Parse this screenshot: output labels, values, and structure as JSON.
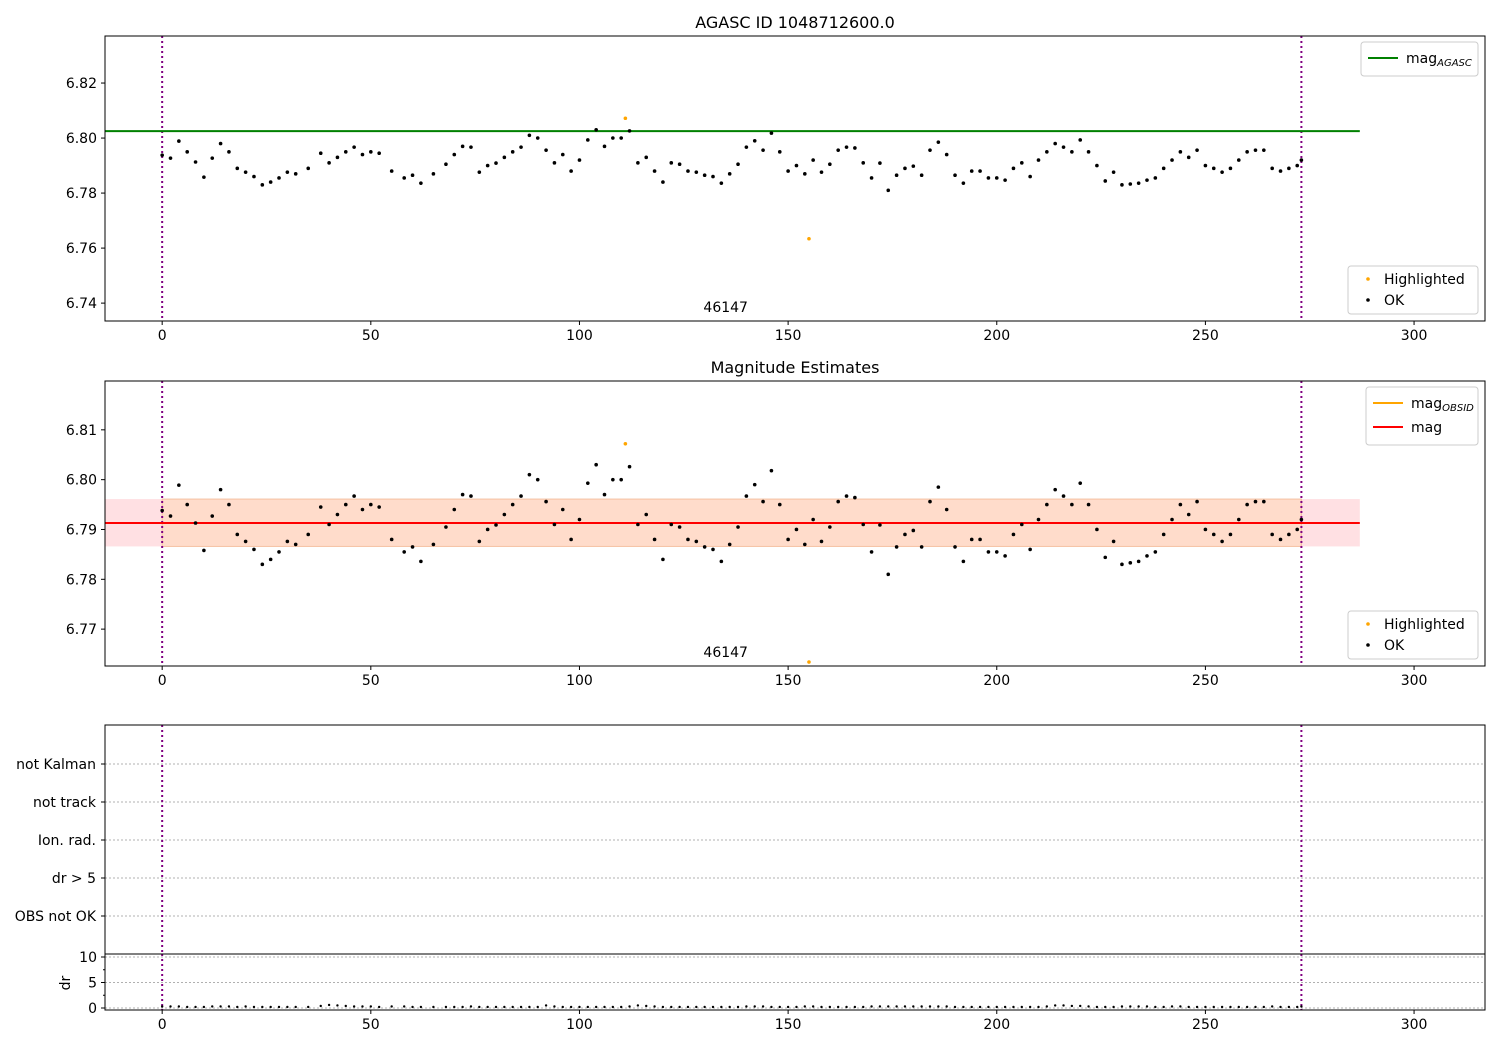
{
  "chart_data": [
    {
      "type": "scatter",
      "title": "AGASC ID 1048712600.0",
      "ylim": [
        6.7335,
        6.8371
      ],
      "xlim": [
        -13.7,
        317
      ],
      "yticks": [
        6.74,
        6.76,
        6.78,
        6.8,
        6.82
      ],
      "ytick_labels": [
        "6.74",
        "6.76",
        "6.78",
        "6.80",
        "6.82"
      ],
      "xticks": [
        0,
        50,
        100,
        150,
        200,
        250,
        300
      ],
      "xtick_labels": [
        "0",
        "50",
        "100",
        "150",
        "200",
        "250",
        "300"
      ],
      "mag_agasc": 6.8025,
      "mag_line_x": [
        -13.7,
        287
      ],
      "annotation": "46147",
      "annotation_x": 136,
      "legend_lines": [
        {
          "label": "mag",
          "sub": "AGASC",
          "color": "#008000"
        }
      ],
      "legend_points": [
        {
          "label": "Highlighted",
          "color": "#ffa500"
        },
        {
          "label": "OK",
          "color": "#000000"
        }
      ]
    },
    {
      "type": "scatter",
      "title": "Magnitude Estimates",
      "ylim": [
        6.7626,
        6.8198
      ],
      "xlim": [
        -13.7,
        317
      ],
      "yticks": [
        6.77,
        6.78,
        6.79,
        6.8,
        6.81
      ],
      "ytick_labels": [
        "6.77",
        "6.78",
        "6.79",
        "6.80",
        "6.81"
      ],
      "xticks": [
        0,
        50,
        100,
        150,
        200,
        250,
        300
      ],
      "xtick_labels": [
        "0",
        "50",
        "100",
        "150",
        "200",
        "250",
        "300"
      ],
      "mag": 6.7913,
      "mag_obsid": 6.7913,
      "band": [
        6.7866,
        6.7961
      ],
      "annotation": "46147",
      "annotation_x": 136,
      "legend_lines": [
        {
          "label": "mag",
          "sub": "OBSID",
          "color": "#ffa500"
        },
        {
          "label": "mag",
          "sub": "",
          "color": "#ff0000"
        }
      ],
      "legend_points": [
        {
          "label": "Highlighted",
          "color": "#ffa500"
        },
        {
          "label": "OK",
          "color": "#000000"
        }
      ]
    },
    {
      "type": "scatter",
      "title": "",
      "categories": [
        "not Kalman",
        "not track",
        "Ion. rad.",
        "dr > 5",
        "OBS not OK"
      ],
      "points": []
    },
    {
      "type": "scatter",
      "ylabel": "dr",
      "ylim": [
        0,
        10.6
      ],
      "yticks": [
        0,
        5,
        10
      ],
      "ytick_labels": [
        "0",
        "5",
        "10"
      ],
      "xticks": [
        0,
        50,
        100,
        150,
        200,
        250,
        300
      ],
      "xtick_labels": [
        "0",
        "50",
        "100",
        "150",
        "200",
        "250",
        "300"
      ],
      "dr_typical": 0.3
    }
  ],
  "series": {
    "x": [
      0,
      2,
      4,
      6,
      8,
      10,
      12,
      14,
      16,
      18,
      20,
      22,
      24,
      26,
      28,
      30,
      32,
      35,
      38,
      40,
      42,
      44,
      46,
      48,
      50,
      52,
      55,
      58,
      60,
      62,
      65,
      68,
      70,
      72,
      74,
      76,
      78,
      80,
      82,
      84,
      86,
      88,
      90,
      92,
      94,
      96,
      98,
      100,
      102,
      104,
      106,
      108,
      110,
      112,
      114,
      116,
      118,
      120,
      122,
      124,
      126,
      128,
      130,
      132,
      134,
      136,
      138,
      140,
      142,
      144,
      146,
      148,
      150,
      152,
      154,
      156,
      158,
      160,
      162,
      164,
      166,
      168,
      170,
      172,
      174,
      176,
      178,
      180,
      182,
      184,
      186,
      188,
      190,
      192,
      194,
      196,
      198,
      200,
      202,
      204,
      206,
      208,
      210,
      212,
      214,
      216,
      218,
      220,
      222,
      224,
      226,
      228,
      230,
      232,
      234,
      236,
      238,
      240,
      242,
      244,
      246,
      248,
      250,
      252,
      254,
      256,
      258,
      260,
      262,
      264,
      266,
      268,
      270,
      272,
      273
    ],
    "mag": [
      6.7938,
      6.7927,
      6.7989,
      6.795,
      6.7913,
      6.7858,
      6.7927,
      6.798,
      6.795,
      6.789,
      6.7876,
      6.786,
      6.783,
      6.784,
      6.7855,
      6.7876,
      6.787,
      6.789,
      6.7945,
      6.791,
      6.793,
      6.795,
      6.7967,
      6.794,
      6.795,
      6.7945,
      6.788,
      6.7855,
      6.7865,
      6.7836,
      6.787,
      6.7905,
      6.794,
      6.797,
      6.7967,
      6.7876,
      6.79,
      6.7909,
      6.793,
      6.795,
      6.7967,
      6.801,
      6.8,
      6.7956,
      6.791,
      6.794,
      6.788,
      6.792,
      6.7993,
      6.803,
      6.797,
      6.8,
      6.8,
      6.8026,
      6.791,
      6.793,
      6.788,
      6.784,
      6.791,
      6.7905,
      6.788,
      6.7876,
      6.7865,
      6.786,
      6.7836,
      6.787,
      6.7905,
      6.7967,
      6.799,
      6.7956,
      6.8018,
      6.795,
      6.788,
      6.79,
      6.787,
      6.792,
      6.7876,
      6.7905,
      6.7956,
      6.7967,
      6.7964,
      6.791,
      6.7855,
      6.7909,
      6.781,
      6.7865,
      6.789,
      6.7898,
      6.7865,
      6.7956,
      6.7985,
      6.794,
      6.7865,
      6.7836,
      6.788,
      6.788,
      6.7855,
      6.7855,
      6.7847,
      6.789,
      6.791,
      6.786,
      6.792,
      6.795,
      6.798,
      6.7967,
      6.795,
      6.7993,
      6.795,
      6.79,
      6.7844,
      6.7876,
      6.783,
      6.7833,
      6.7836,
      6.7847,
      6.7855,
      6.789,
      6.792,
      6.795,
      6.793,
      6.7956,
      6.79,
      6.789,
      6.7876,
      6.789,
      6.792,
      6.795,
      6.7956,
      6.7956,
      6.789,
      6.788,
      6.789,
      6.79,
      6.792
    ],
    "dr": [
      0.3,
      0.3,
      0.3,
      0.2,
      0.2,
      0.2,
      0.3,
      0.3,
      0.3,
      0.2,
      0.3,
      0.2,
      0.2,
      0.2,
      0.2,
      0.2,
      0.2,
      0.2,
      0.4,
      0.6,
      0.5,
      0.4,
      0.3,
      0.3,
      0.3,
      0.2,
      0.3,
      0.3,
      0.2,
      0.2,
      0.2,
      0.2,
      0.2,
      0.2,
      0.3,
      0.2,
      0.2,
      0.2,
      0.2,
      0.2,
      0.2,
      0.2,
      0.2,
      0.5,
      0.3,
      0.2,
      0.2,
      0.2,
      0.2,
      0.2,
      0.2,
      0.2,
      0.2,
      0.3,
      0.5,
      0.4,
      0.3,
      0.2,
      0.2,
      0.2,
      0.2,
      0.2,
      0.2,
      0.2,
      0.2,
      0.2,
      0.2,
      0.3,
      0.3,
      0.3,
      0.2,
      0.2,
      0.2,
      0.2,
      0.3,
      0.3,
      0.2,
      0.2,
      0.2,
      0.2,
      0.2,
      0.2,
      0.3,
      0.3,
      0.3,
      0.3,
      0.3,
      0.3,
      0.3,
      0.3,
      0.3,
      0.3,
      0.2,
      0.2,
      0.2,
      0.2,
      0.2,
      0.2,
      0.2,
      0.2,
      0.2,
      0.2,
      0.2,
      0.3,
      0.5,
      0.5,
      0.4,
      0.4,
      0.3,
      0.2,
      0.2,
      0.2,
      0.3,
      0.3,
      0.3,
      0.3,
      0.2,
      0.2,
      0.3,
      0.3,
      0.2,
      0.2,
      0.2,
      0.2,
      0.2,
      0.2,
      0.2,
      0.2,
      0.2,
      0.2,
      0.3,
      0.2,
      0.2,
      0.2,
      0.3
    ]
  },
  "highlighted": {
    "x": [
      111,
      155
    ],
    "mag": [
      6.8072,
      6.7634
    ]
  },
  "markers": {
    "vlines_x": [
      0,
      273
    ],
    "vline_color": "#800080"
  }
}
